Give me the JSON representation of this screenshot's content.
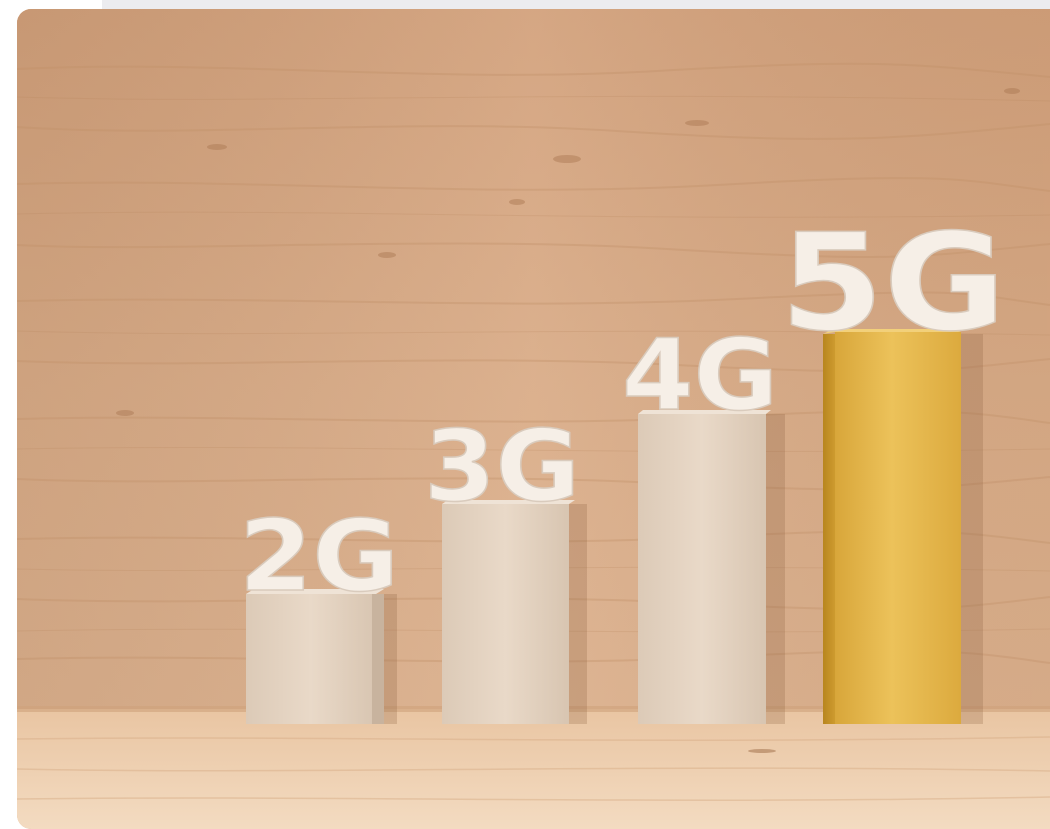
{
  "image": {
    "labels": {
      "gen2": "2G",
      "gen3": "3G",
      "gen4": "4G",
      "gen5": "5G"
    },
    "colors": {
      "wall": "#d6a782",
      "floor": "#edcfb0",
      "block": "#e6d6c4",
      "gold_block": "#e6b548",
      "label": "#f7f1ea"
    }
  }
}
